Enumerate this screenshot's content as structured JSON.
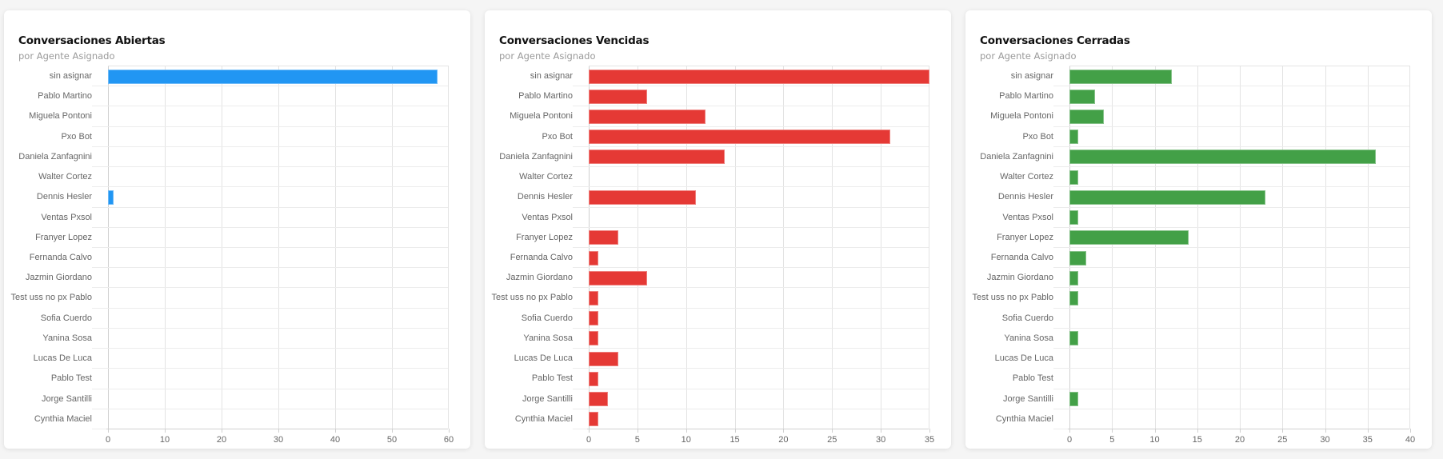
{
  "panels": [
    {
      "title": "Conversaciones Abiertas",
      "subtitle": "por Agente Asignado",
      "color": "#2196F3"
    },
    {
      "title": "Conversaciones Vencidas",
      "subtitle": "por Agente Asignado",
      "color": "#E53935"
    },
    {
      "title": "Conversaciones Cerradas",
      "subtitle": "por Agente Asignado",
      "color": "#43A047"
    }
  ],
  "chart_data": [
    {
      "type": "bar",
      "orientation": "horizontal",
      "title": "Conversaciones Abiertas",
      "subtitle": "por Agente Asignado",
      "xlabel": "",
      "ylabel": "",
      "xlim": [
        0,
        60
      ],
      "xticks": [
        0,
        10,
        20,
        30,
        40,
        50,
        60
      ],
      "grid": true,
      "color": "#2196F3",
      "categories": [
        "sin asignar",
        "Pablo Martino",
        "Miguela Pontoni",
        "Pxo Bot",
        "Daniela Zanfagnini",
        "Walter Cortez",
        "Dennis Hesler",
        "Ventas Pxsol",
        "Franyer Lopez",
        "Fernanda Calvo",
        "Jazmin Giordano",
        "Test uss no px Pablo",
        "Sofia Cuerdo",
        "Yanina Sosa",
        "Lucas De Luca",
        "Pablo Test",
        "Jorge Santilli",
        "Cynthia Maciel"
      ],
      "values": [
        58,
        0,
        0,
        0,
        0,
        0,
        1,
        0,
        0,
        0,
        0,
        0,
        0,
        0,
        0,
        0,
        0,
        0
      ]
    },
    {
      "type": "bar",
      "orientation": "horizontal",
      "title": "Conversaciones Vencidas",
      "subtitle": "por Agente Asignado",
      "xlabel": "",
      "ylabel": "",
      "xlim": [
        0,
        35
      ],
      "xticks": [
        0,
        5,
        10,
        15,
        20,
        25,
        30,
        35
      ],
      "grid": true,
      "color": "#E53935",
      "categories": [
        "sin asignar",
        "Pablo Martino",
        "Miguela Pontoni",
        "Pxo Bot",
        "Daniela Zanfagnini",
        "Walter Cortez",
        "Dennis Hesler",
        "Ventas Pxsol",
        "Franyer Lopez",
        "Fernanda Calvo",
        "Jazmin Giordano",
        "Test uss no px Pablo",
        "Sofia Cuerdo",
        "Yanina Sosa",
        "Lucas De Luca",
        "Pablo Test",
        "Jorge Santilli",
        "Cynthia Maciel"
      ],
      "values": [
        35,
        6,
        12,
        31,
        14,
        0,
        11,
        0,
        3,
        1,
        6,
        1,
        1,
        1,
        3,
        1,
        2,
        1
      ]
    },
    {
      "type": "bar",
      "orientation": "horizontal",
      "title": "Conversaciones Cerradas",
      "subtitle": "por Agente Asignado",
      "xlabel": "",
      "ylabel": "",
      "xlim": [
        0,
        40
      ],
      "xticks": [
        0,
        5,
        10,
        15,
        20,
        25,
        30,
        35,
        40
      ],
      "grid": true,
      "color": "#43A047",
      "categories": [
        "sin asignar",
        "Pablo Martino",
        "Miguela Pontoni",
        "Pxo Bot",
        "Daniela Zanfagnini",
        "Walter Cortez",
        "Dennis Hesler",
        "Ventas Pxsol",
        "Franyer Lopez",
        "Fernanda Calvo",
        "Jazmin Giordano",
        "Test uss no px Pablo",
        "Sofia Cuerdo",
        "Yanina Sosa",
        "Lucas De Luca",
        "Pablo Test",
        "Jorge Santilli",
        "Cynthia Maciel"
      ],
      "values": [
        12,
        3,
        4,
        1,
        36,
        1,
        23,
        1,
        14,
        2,
        1,
        1,
        0,
        1,
        0,
        0,
        1,
        0
      ]
    }
  ]
}
